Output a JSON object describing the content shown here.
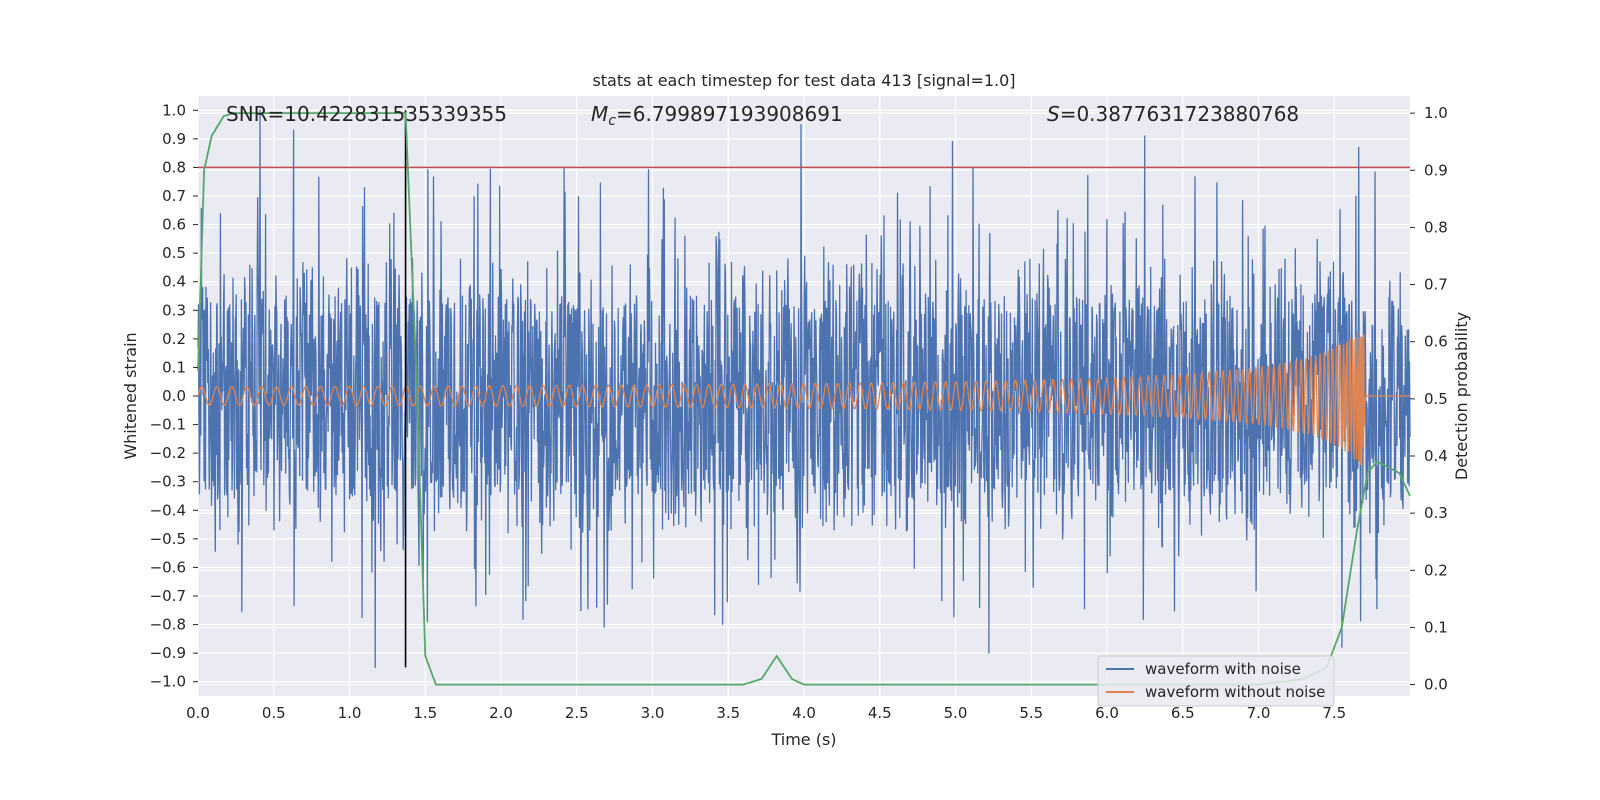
{
  "chart_data": {
    "type": "line",
    "title": "stats at each timestep for test data 413 [signal=1.0]",
    "xlabel": "Time (s)",
    "ylabel": "Whitened strain",
    "y2label": "Detection probability",
    "xlim": [
      0.0,
      8.0
    ],
    "ylim": [
      -1.05,
      1.05
    ],
    "y2lim": [
      -0.02,
      1.03
    ],
    "xticks": [
      "0.0",
      "0.5",
      "1.0",
      "1.5",
      "2.0",
      "2.5",
      "3.0",
      "3.5",
      "4.0",
      "4.5",
      "5.0",
      "5.5",
      "6.0",
      "6.5",
      "7.0",
      "7.5"
    ],
    "yticks": [
      "1.0",
      "0.9",
      "0.8",
      "0.7",
      "0.6",
      "0.5",
      "0.4",
      "0.3",
      "0.2",
      "0.1",
      "0.0",
      "−0.1",
      "−0.2",
      "−0.3",
      "−0.4",
      "−0.5",
      "−0.6",
      "−0.7",
      "−0.8",
      "−0.9",
      "−1.0"
    ],
    "y2ticks": [
      "1.0",
      "0.9",
      "0.8",
      "0.7",
      "0.6",
      "0.5",
      "0.4",
      "0.3",
      "0.2",
      "0.1",
      "0.0"
    ],
    "grid": true,
    "legend_position": "lower-right",
    "annotations": {
      "snr": "SNR=10.422831535339355",
      "mc_symbol": "M",
      "mc_sub": "c",
      "mc_value": "=6.799897193908691",
      "s_symbol": "S",
      "s_value": "=0.3877631723880768"
    },
    "threshold_line": {
      "y": 0.8,
      "color": "#c44e52"
    },
    "vertical_marker": {
      "x": 1.37,
      "y_range": [
        -0.95,
        1.0
      ],
      "color": "#000000"
    },
    "series": [
      {
        "name": "waveform with noise",
        "color": "#4c72b0",
        "axis": "left",
        "x_range": [
          0.0,
          8.0
        ],
        "typical_envelope": [
          -0.35,
          0.35
        ],
        "notable_peaks": [
          {
            "x": 0.41,
            "y": 1.0
          },
          {
            "x": 0.63,
            "y": 0.93
          },
          {
            "x": 1.17,
            "y": -0.95
          },
          {
            "x": 3.98,
            "y": 0.95
          },
          {
            "x": 4.98,
            "y": 0.89
          },
          {
            "x": 6.25,
            "y": 0.91
          },
          {
            "x": 7.66,
            "y": 0.87
          },
          {
            "x": 2.68,
            "y": -0.81
          },
          {
            "x": 5.22,
            "y": -0.9
          },
          {
            "x": 7.55,
            "y": -0.88
          }
        ]
      },
      {
        "name": "waveform without noise",
        "color": "#dd8452",
        "axis": "left",
        "x_range": [
          0.0,
          7.7
        ],
        "amplitude_start": 0.02,
        "amplitude_end": 0.26,
        "flat_after": 7.7
      },
      {
        "name": "detection probability",
        "color": "#55a868",
        "axis": "right",
        "x": [
          0.0,
          0.04,
          0.09,
          0.17,
          0.24,
          0.5,
          1.0,
          1.37,
          1.44,
          1.5,
          1.57,
          2.0,
          3.0,
          3.6,
          3.72,
          3.82,
          3.92,
          4.0,
          5.0,
          6.0,
          7.0,
          7.3,
          7.45,
          7.55,
          7.65,
          7.72,
          7.78,
          7.86,
          7.93,
          8.0
        ],
        "y": [
          0.55,
          0.9,
          0.96,
          0.995,
          1.0,
          1.0,
          1.0,
          1.0,
          0.55,
          0.05,
          0.0,
          0.0,
          0.0,
          0.0,
          0.01,
          0.05,
          0.01,
          0.0,
          0.0,
          0.0,
          0.0,
          0.01,
          0.03,
          0.1,
          0.27,
          0.37,
          0.39,
          0.38,
          0.37,
          0.33
        ]
      }
    ]
  }
}
